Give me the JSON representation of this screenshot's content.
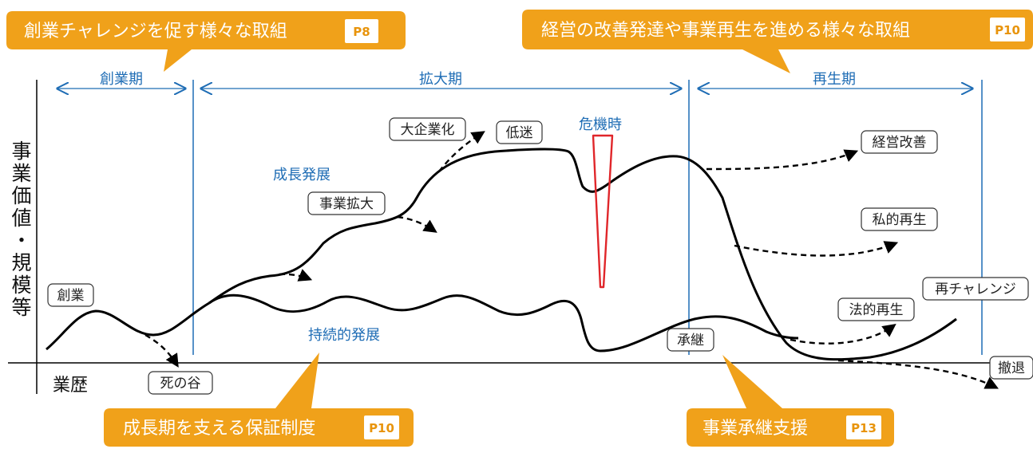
{
  "callouts": {
    "sogyo": {
      "text": "創業チャレンジを促す様々な取組",
      "page": "P8"
    },
    "kaizen": {
      "text": "経営の改善発達や事業再生を進める様々な取組",
      "page": "P10"
    },
    "hosho": {
      "text": "成長期を支える保証制度",
      "page": "P10"
    },
    "shokei": {
      "text": "事業承継支援",
      "page": "P13"
    }
  },
  "phases": {
    "sogyo": "創業期",
    "kakudai": "拡大期",
    "saisei": "再生期"
  },
  "axes": {
    "y_label": [
      "事",
      "業",
      "価",
      "値",
      "・",
      "規",
      "模",
      "等"
    ],
    "x_label": "業歴"
  },
  "annotations": {
    "crisis": "危機時",
    "growth": "成長発展",
    "sustained": "持続的発展"
  },
  "boxes": {
    "sogyo": "創業",
    "shinotani": "死の谷",
    "jigyokakudai": "事業拡大",
    "daikigyoka": "大企業化",
    "teimei": "低迷",
    "keieikaizen": "経営改善",
    "shitekisaisei": "私的再生",
    "hotekisaisei": "法的再生",
    "sairechallenge": "再チャレンジ",
    "tettai": "撤退",
    "shokei": "承継"
  },
  "colors": {
    "orange": "#f0a11a",
    "blue": "#1f6db5",
    "red": "#e0262a",
    "line": "#000000"
  }
}
